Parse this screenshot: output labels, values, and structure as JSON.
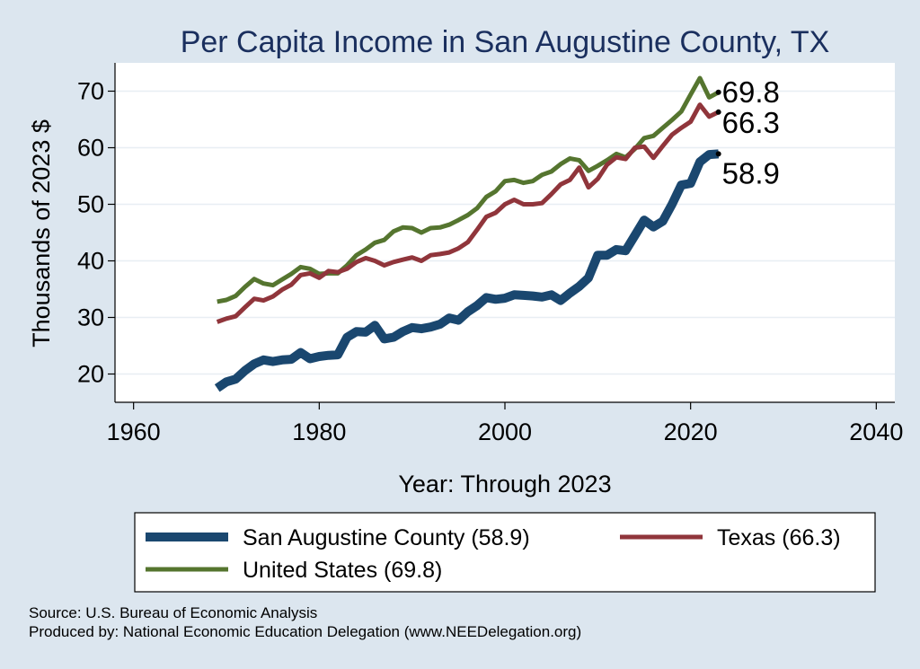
{
  "chart_data": {
    "type": "line",
    "title": "Per Capita Income in San Augustine County, TX",
    "xlabel": "Year: Through 2023",
    "ylabel": "Thousands of 2023 $",
    "xlim": [
      1958,
      2042
    ],
    "ylim": [
      15,
      75
    ],
    "xticks": [
      "1960",
      "1980",
      "2000",
      "2020",
      "2040"
    ],
    "yticks": [
      "20",
      "30",
      "40",
      "50",
      "60",
      "70"
    ],
    "grid": true,
    "legend_position": "bottom",
    "x": [
      1969,
      1970,
      1971,
      1972,
      1973,
      1974,
      1975,
      1976,
      1977,
      1978,
      1979,
      1980,
      1981,
      1982,
      1983,
      1984,
      1985,
      1986,
      1987,
      1988,
      1989,
      1990,
      1991,
      1992,
      1993,
      1994,
      1995,
      1996,
      1997,
      1998,
      1999,
      2000,
      2001,
      2002,
      2003,
      2004,
      2005,
      2006,
      2007,
      2008,
      2009,
      2010,
      2011,
      2012,
      2013,
      2014,
      2015,
      2016,
      2017,
      2018,
      2019,
      2020,
      2021,
      2022,
      2023
    ],
    "series": [
      {
        "name": "San Augustine County (58.9)",
        "color": "#1a476f",
        "end_label": "58.9",
        "values": [
          17.5,
          18.6,
          19.1,
          20.6,
          21.8,
          22.5,
          22.2,
          22.5,
          22.6,
          23.8,
          22.7,
          23.1,
          23.3,
          23.4,
          26.5,
          27.5,
          27.4,
          28.6,
          26.2,
          26.5,
          27.5,
          28.2,
          28.0,
          28.3,
          28.8,
          29.9,
          29.5,
          31.0,
          32.1,
          33.5,
          33.2,
          33.4,
          34.0,
          33.9,
          33.8,
          33.6,
          34.0,
          33.0,
          34.3,
          35.5,
          37.0,
          41.0,
          41.0,
          42.0,
          41.8,
          44.5,
          47.2,
          46.0,
          47.0,
          50.0,
          53.4,
          53.7,
          57.5,
          58.8,
          58.9
        ]
      },
      {
        "name": "Texas (66.3)",
        "color": "#90353b",
        "end_label": "66.3",
        "values": [
          29.2,
          29.8,
          30.2,
          31.8,
          33.3,
          33.0,
          33.7,
          34.9,
          35.8,
          37.5,
          37.8,
          37.0,
          38.2,
          38.0,
          38.6,
          39.8,
          40.5,
          40.0,
          39.2,
          39.8,
          40.2,
          40.6,
          40.0,
          41.0,
          41.2,
          41.5,
          42.2,
          43.3,
          45.5,
          47.8,
          48.5,
          50.0,
          50.8,
          50.0,
          50.0,
          50.2,
          51.8,
          53.5,
          54.3,
          56.5,
          53.0,
          54.5,
          57.0,
          58.3,
          58.0,
          60.0,
          60.2,
          58.2,
          60.3,
          62.3,
          63.5,
          64.6,
          67.6,
          65.5,
          66.3
        ]
      },
      {
        "name": "United States (69.8)",
        "color": "#55752f",
        "end_label": "69.8",
        "values": [
          32.8,
          33.1,
          33.8,
          35.4,
          36.8,
          36.0,
          35.7,
          36.7,
          37.7,
          38.9,
          38.6,
          37.7,
          37.8,
          37.8,
          39.2,
          41.0,
          42.0,
          43.2,
          43.7,
          45.2,
          45.9,
          45.8,
          45.0,
          45.8,
          45.9,
          46.4,
          47.2,
          48.1,
          49.3,
          51.3,
          52.3,
          54.1,
          54.3,
          53.8,
          54.1,
          55.2,
          55.8,
          57.1,
          58.1,
          57.8,
          55.9,
          56.8,
          57.8,
          58.9,
          58.3,
          59.8,
          61.7,
          62.1,
          63.5,
          64.9,
          66.4,
          69.4,
          72.3,
          68.9,
          69.8
        ]
      }
    ]
  },
  "source_text": "Source: U.S. Bureau of Economic Analysis",
  "produced_text": "Produced by: National Economic Education Delegation (www.NEEDelegation.org)"
}
